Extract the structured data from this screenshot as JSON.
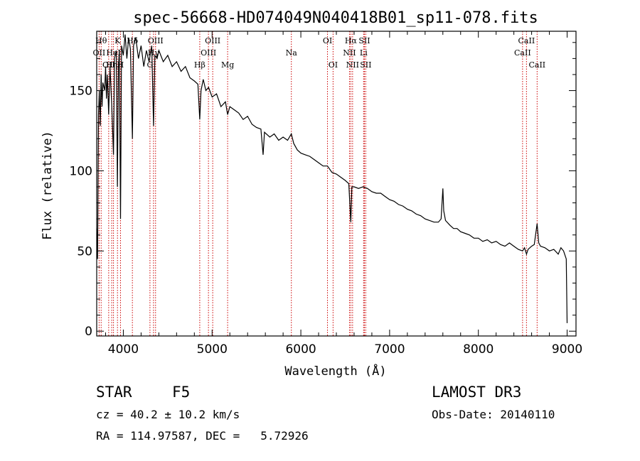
{
  "chart_data": {
    "type": "line",
    "title": "spec-56668-HD074049N040418B01_sp11-078.fits",
    "xlabel": "Wavelength (Å)",
    "ylabel": "Flux (relative)",
    "xlim": [
      3700,
      9100
    ],
    "ylim": [
      -3,
      187
    ],
    "x_ticks": [
      4000,
      5000,
      6000,
      7000,
      8000,
      9000
    ],
    "y_ticks": [
      0,
      50,
      100,
      150
    ],
    "line_color": "#000000",
    "marker_color": "#cc0000",
    "series": [
      {
        "name": "spectrum",
        "points": [
          [
            3700,
            64
          ],
          [
            3710,
            45
          ],
          [
            3720,
            135
          ],
          [
            3730,
            150
          ],
          [
            3740,
            128
          ],
          [
            3750,
            160
          ],
          [
            3760,
            140
          ],
          [
            3770,
            155
          ],
          [
            3790,
            150
          ],
          [
            3800,
            165
          ],
          [
            3810,
            145
          ],
          [
            3820,
            160
          ],
          [
            3835,
            135
          ],
          [
            3850,
            165
          ],
          [
            3870,
            140
          ],
          [
            3889,
            110
          ],
          [
            3900,
            170
          ],
          [
            3920,
            175
          ],
          [
            3933,
            90
          ],
          [
            3945,
            165
          ],
          [
            3955,
            175
          ],
          [
            3968,
            70
          ],
          [
            3980,
            178
          ],
          [
            4000,
            172
          ],
          [
            4020,
            185
          ],
          [
            4040,
            170
          ],
          [
            4060,
            183
          ],
          [
            4080,
            176
          ],
          [
            4102,
            120
          ],
          [
            4115,
            178
          ],
          [
            4140,
            183
          ],
          [
            4170,
            170
          ],
          [
            4200,
            178
          ],
          [
            4230,
            165
          ],
          [
            4260,
            175
          ],
          [
            4290,
            168
          ],
          [
            4320,
            178
          ],
          [
            4340,
            128
          ],
          [
            4355,
            172
          ],
          [
            4380,
            170
          ],
          [
            4400,
            175
          ],
          [
            4450,
            168
          ],
          [
            4500,
            172
          ],
          [
            4550,
            165
          ],
          [
            4600,
            168
          ],
          [
            4650,
            162
          ],
          [
            4700,
            165
          ],
          [
            4750,
            158
          ],
          [
            4800,
            156
          ],
          [
            4840,
            154
          ],
          [
            4861,
            132
          ],
          [
            4875,
            150
          ],
          [
            4900,
            157
          ],
          [
            4930,
            150
          ],
          [
            4960,
            152
          ],
          [
            5000,
            146
          ],
          [
            5050,
            148
          ],
          [
            5100,
            140
          ],
          [
            5150,
            143
          ],
          [
            5175,
            135
          ],
          [
            5200,
            140
          ],
          [
            5250,
            138
          ],
          [
            5300,
            136
          ],
          [
            5350,
            132
          ],
          [
            5400,
            134
          ],
          [
            5450,
            129
          ],
          [
            5500,
            127
          ],
          [
            5550,
            126
          ],
          [
            5575,
            110
          ],
          [
            5590,
            124
          ],
          [
            5650,
            121
          ],
          [
            5700,
            123
          ],
          [
            5750,
            119
          ],
          [
            5800,
            121
          ],
          [
            5850,
            119
          ],
          [
            5893,
            123
          ],
          [
            5920,
            117
          ],
          [
            5960,
            113
          ],
          [
            6000,
            111
          ],
          [
            6050,
            110
          ],
          [
            6100,
            109
          ],
          [
            6150,
            107
          ],
          [
            6200,
            105
          ],
          [
            6250,
            103
          ],
          [
            6300,
            103
          ],
          [
            6350,
            99
          ],
          [
            6400,
            98
          ],
          [
            6450,
            96
          ],
          [
            6500,
            94
          ],
          [
            6540,
            92
          ],
          [
            6563,
            68
          ],
          [
            6575,
            90
          ],
          [
            6600,
            90
          ],
          [
            6650,
            89
          ],
          [
            6700,
            90
          ],
          [
            6750,
            89
          ],
          [
            6800,
            87
          ],
          [
            6850,
            86
          ],
          [
            6900,
            86
          ],
          [
            6950,
            84
          ],
          [
            7000,
            82
          ],
          [
            7050,
            81
          ],
          [
            7100,
            79
          ],
          [
            7150,
            78
          ],
          [
            7200,
            76
          ],
          [
            7250,
            75
          ],
          [
            7300,
            73
          ],
          [
            7350,
            72
          ],
          [
            7400,
            70
          ],
          [
            7450,
            69
          ],
          [
            7500,
            68
          ],
          [
            7550,
            68
          ],
          [
            7580,
            70
          ],
          [
            7600,
            89
          ],
          [
            7610,
            75
          ],
          [
            7630,
            69
          ],
          [
            7680,
            66
          ],
          [
            7720,
            64
          ],
          [
            7760,
            64
          ],
          [
            7800,
            62
          ],
          [
            7850,
            61
          ],
          [
            7900,
            60
          ],
          [
            7950,
            58
          ],
          [
            8000,
            58
          ],
          [
            8050,
            56
          ],
          [
            8100,
            57
          ],
          [
            8150,
            55
          ],
          [
            8200,
            56
          ],
          [
            8250,
            54
          ],
          [
            8300,
            53
          ],
          [
            8350,
            55
          ],
          [
            8400,
            53
          ],
          [
            8450,
            51
          ],
          [
            8498,
            50
          ],
          [
            8520,
            52
          ],
          [
            8542,
            48
          ],
          [
            8560,
            51
          ],
          [
            8600,
            53
          ],
          [
            8630,
            54
          ],
          [
            8662,
            67
          ],
          [
            8680,
            55
          ],
          [
            8700,
            53
          ],
          [
            8750,
            52
          ],
          [
            8800,
            50
          ],
          [
            8850,
            51
          ],
          [
            8900,
            48
          ],
          [
            8930,
            52
          ],
          [
            8960,
            50
          ],
          [
            8990,
            45
          ],
          [
            9000,
            5
          ]
        ]
      }
    ],
    "lines": [
      {
        "wl": 3727,
        "label": "OII",
        "row": 2
      },
      {
        "wl": 3750,
        "label": "Hθ",
        "row": 1
      },
      {
        "wl": 3835,
        "label": "OII",
        "row": 3
      },
      {
        "wl": 3869,
        "label": "Hη",
        "row": 3
      },
      {
        "wl": 3889,
        "label": "HeI",
        "row": 2
      },
      {
        "wl": 3934,
        "label": "K",
        "row": 1
      },
      {
        "wl": 3968,
        "label": "H",
        "row": 3
      },
      {
        "wl": 4102,
        "label": "Hδ",
        "row": 1
      },
      {
        "wl": 4300,
        "label": "G",
        "row": 3
      },
      {
        "wl": 4340,
        "label": "Hγ",
        "row": 2
      },
      {
        "wl": 4363,
        "label": "OIII",
        "row": 1
      },
      {
        "wl": 4861,
        "label": "Hβ",
        "row": 3
      },
      {
        "wl": 4959,
        "label": "OIII",
        "row": 2
      },
      {
        "wl": 5007,
        "label": "OIII",
        "row": 1
      },
      {
        "wl": 5175,
        "label": "Mg",
        "row": 3
      },
      {
        "wl": 5893,
        "label": "Na",
        "row": 2
      },
      {
        "wl": 6300,
        "label": "OI",
        "row": 1
      },
      {
        "wl": 6363,
        "label": "OI",
        "row": 3
      },
      {
        "wl": 6548,
        "label": "NII",
        "row": 2
      },
      {
        "wl": 6563,
        "label": "Hα",
        "row": 1
      },
      {
        "wl": 6583,
        "label": "NII",
        "row": 3
      },
      {
        "wl": 6707,
        "label": "Li",
        "row": 2
      },
      {
        "wl": 6716,
        "label": "SII",
        "row": 1
      },
      {
        "wl": 6731,
        "label": "SII",
        "row": 3
      },
      {
        "wl": 8498,
        "label": "CaII",
        "row": 2
      },
      {
        "wl": 8542,
        "label": "CaII",
        "row": 1
      },
      {
        "wl": 8662,
        "label": "CaII",
        "row": 3
      }
    ]
  },
  "info": {
    "object_type": "STAR",
    "subclass": "F5",
    "survey": "LAMOST DR3",
    "cz": "cz = 40.2 ± 10.2 km/s",
    "obs_date": "Obs-Date: 20140110",
    "coords": "RA = 114.97587, DEC =   5.72926"
  }
}
